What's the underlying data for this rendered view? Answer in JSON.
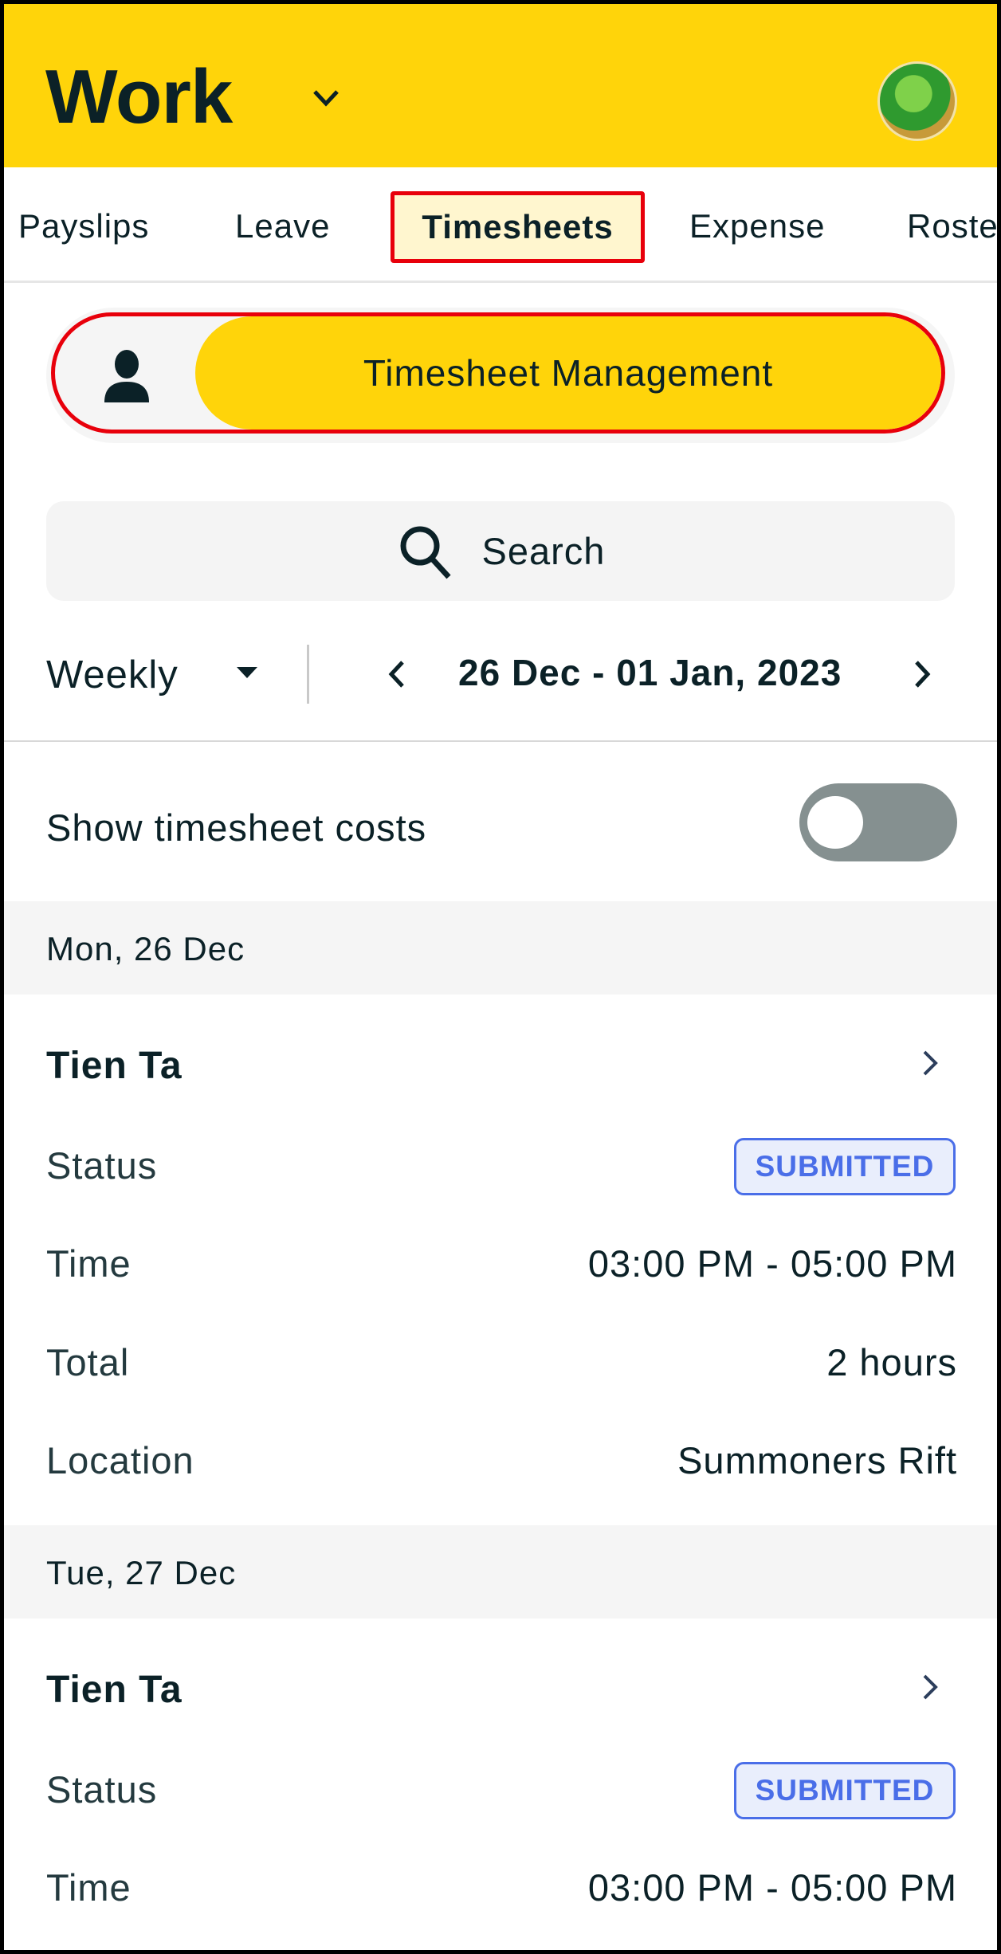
{
  "header": {
    "title": "Work",
    "title_icon": "chevron-down-icon",
    "avatar": "user-avatar",
    "accent": "#ffd40a"
  },
  "tabs": [
    {
      "label": "Payslips"
    },
    {
      "label": "Leave"
    },
    {
      "label": "Timesheets",
      "active": true
    },
    {
      "label": "Expense"
    },
    {
      "label": "Roster"
    }
  ],
  "segment": {
    "options": [
      {
        "icon": "user-icon"
      },
      {
        "label": "Timesheet Management",
        "selected": true
      }
    ]
  },
  "search": {
    "placeholder": "Search",
    "icon": "search-icon"
  },
  "filter": {
    "period": "Weekly",
    "date_range": "26 Dec - 01 Jan, 2023"
  },
  "costs": {
    "label": "Show timesheet costs",
    "enabled": false
  },
  "labels": {
    "status": "Status",
    "time": "Time",
    "total": "Total",
    "location": "Location"
  },
  "status_color": "#4a6ee8",
  "days": [
    {
      "date": "Mon, 26 Dec",
      "entries": [
        {
          "name": "Tien Ta",
          "status": "SUBMITTED",
          "time": "03:00 PM - 05:00 PM",
          "total": "2 hours",
          "location": "Summoners Rift"
        }
      ]
    },
    {
      "date": "Tue, 27 Dec",
      "entries": [
        {
          "name": "Tien Ta",
          "status": "SUBMITTED",
          "time": "03:00 PM - 05:00 PM"
        }
      ]
    }
  ]
}
